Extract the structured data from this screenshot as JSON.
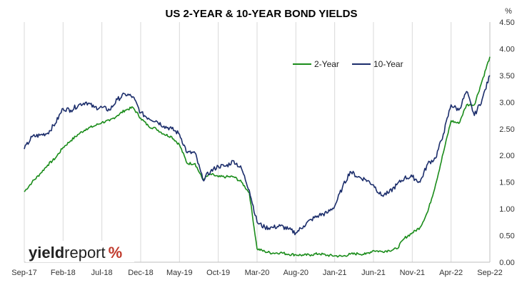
{
  "chart_data": {
    "type": "line",
    "title": "US 2-YEAR & 10-YEAR BOND YIELDS",
    "yunit": "%",
    "ylim": [
      0,
      4.5
    ],
    "yticks": [
      "0.00",
      "0.50",
      "1.00",
      "1.50",
      "2.00",
      "2.50",
      "3.00",
      "3.50",
      "4.00",
      "4.50"
    ],
    "x_tick_labels": [
      "Sep-17",
      "Feb-18",
      "Jul-18",
      "Dec-18",
      "May-19",
      "Oct-19",
      "Mar-20",
      "Aug-20",
      "Jan-21",
      "Jun-21",
      "Nov-21",
      "Apr-22",
      "Sep-22"
    ],
    "grid": "vertical",
    "legend_position": "top-right",
    "series": [
      {
        "name": "2-Year",
        "color": "#1a8c1a",
        "x": [
          "2017-09",
          "2017-10",
          "2017-11",
          "2017-12",
          "2018-01",
          "2018-02",
          "2018-03",
          "2018-04",
          "2018-05",
          "2018-06",
          "2018-07",
          "2018-08",
          "2018-09",
          "2018-10",
          "2018-11",
          "2018-12",
          "2019-01",
          "2019-02",
          "2019-03",
          "2019-04",
          "2019-05",
          "2019-06",
          "2019-07",
          "2019-08",
          "2019-09",
          "2019-10",
          "2019-11",
          "2019-12",
          "2020-01",
          "2020-02",
          "2020-03",
          "2020-04",
          "2020-05",
          "2020-06",
          "2020-07",
          "2020-08",
          "2020-09",
          "2020-10",
          "2020-11",
          "2020-12",
          "2021-01",
          "2021-02",
          "2021-03",
          "2021-04",
          "2021-05",
          "2021-06",
          "2021-07",
          "2021-08",
          "2021-09",
          "2021-10",
          "2021-11",
          "2021-12",
          "2022-01",
          "2022-02",
          "2022-03",
          "2022-04",
          "2022-05",
          "2022-06",
          "2022-07",
          "2022-08",
          "2022-09"
        ],
        "values": [
          1.32,
          1.5,
          1.65,
          1.82,
          1.95,
          2.15,
          2.28,
          2.4,
          2.5,
          2.55,
          2.62,
          2.65,
          2.75,
          2.85,
          2.9,
          2.7,
          2.55,
          2.5,
          2.4,
          2.35,
          2.2,
          1.85,
          1.85,
          1.55,
          1.65,
          1.6,
          1.6,
          1.6,
          1.5,
          1.3,
          0.25,
          0.2,
          0.17,
          0.18,
          0.15,
          0.14,
          0.13,
          0.14,
          0.16,
          0.13,
          0.12,
          0.11,
          0.15,
          0.16,
          0.15,
          0.22,
          0.2,
          0.22,
          0.25,
          0.45,
          0.55,
          0.65,
          0.95,
          1.45,
          2.05,
          2.65,
          2.6,
          2.95,
          2.95,
          3.4,
          3.85
        ]
      },
      {
        "name": "10-Year",
        "color": "#1b2d6b",
        "x": [
          "2017-09",
          "2017-10",
          "2017-11",
          "2017-12",
          "2018-01",
          "2018-02",
          "2018-03",
          "2018-04",
          "2018-05",
          "2018-06",
          "2018-07",
          "2018-08",
          "2018-09",
          "2018-10",
          "2018-11",
          "2018-12",
          "2019-01",
          "2019-02",
          "2019-03",
          "2019-04",
          "2019-05",
          "2019-06",
          "2019-07",
          "2019-08",
          "2019-09",
          "2019-10",
          "2019-11",
          "2019-12",
          "2020-01",
          "2020-02",
          "2020-03",
          "2020-04",
          "2020-05",
          "2020-06",
          "2020-07",
          "2020-08",
          "2020-09",
          "2020-10",
          "2020-11",
          "2020-12",
          "2021-01",
          "2021-02",
          "2021-03",
          "2021-04",
          "2021-05",
          "2021-06",
          "2021-07",
          "2021-08",
          "2021-09",
          "2021-10",
          "2021-11",
          "2021-12",
          "2022-01",
          "2022-02",
          "2022-03",
          "2022-04",
          "2022-05",
          "2022-06",
          "2022-07",
          "2022-08",
          "2022-09"
        ],
        "values": [
          2.12,
          2.35,
          2.38,
          2.42,
          2.6,
          2.88,
          2.85,
          2.95,
          3.0,
          2.9,
          2.9,
          2.85,
          3.05,
          3.15,
          3.1,
          2.8,
          2.7,
          2.65,
          2.55,
          2.5,
          2.4,
          2.05,
          2.05,
          1.55,
          1.7,
          1.8,
          1.8,
          1.9,
          1.75,
          1.35,
          0.75,
          0.65,
          0.65,
          0.68,
          0.62,
          0.55,
          0.68,
          0.8,
          0.88,
          0.92,
          1.05,
          1.4,
          1.7,
          1.6,
          1.55,
          1.45,
          1.25,
          1.3,
          1.45,
          1.58,
          1.6,
          1.5,
          1.85,
          1.95,
          2.4,
          2.95,
          2.85,
          3.2,
          2.75,
          3.05,
          3.5
        ]
      }
    ]
  },
  "logo": {
    "text_bold": "yield",
    "text_regular": "report",
    "symbol": "%"
  }
}
